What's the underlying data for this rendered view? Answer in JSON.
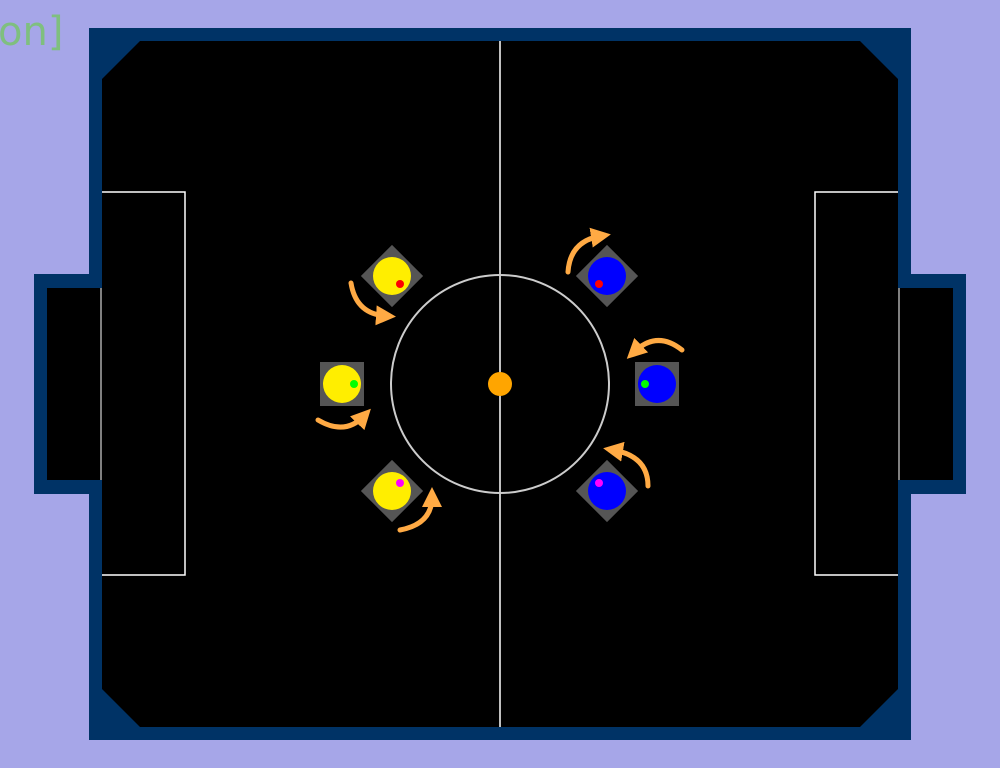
{
  "overlay_label": "on]",
  "colors": {
    "background": "#a6a6e8",
    "label": "#7fbf7f",
    "arena_wall": "#003366",
    "field": "#000000",
    "lines": "#ffffff",
    "center_circle": "#cccccc",
    "ball": "#ffa500",
    "robot_base": "#555555",
    "rotation_arrow": "#ffaa44"
  },
  "ball": {
    "name": "ball",
    "color": "#ffa500"
  },
  "teams": [
    {
      "name": "yellow",
      "color": "#ffee00",
      "robots": [
        {
          "id": "yellow-robot-1",
          "marker_color": "#ff0000"
        },
        {
          "id": "yellow-robot-2",
          "marker_color": "#00ff00"
        },
        {
          "id": "yellow-robot-3",
          "marker_color": "#ff00ff"
        }
      ]
    },
    {
      "name": "blue",
      "color": "#0000ff",
      "robots": [
        {
          "id": "blue-robot-1",
          "marker_color": "#ff0000"
        },
        {
          "id": "blue-robot-2",
          "marker_color": "#00ff00"
        },
        {
          "id": "blue-robot-3",
          "marker_color": "#ff00ff"
        }
      ]
    }
  ]
}
